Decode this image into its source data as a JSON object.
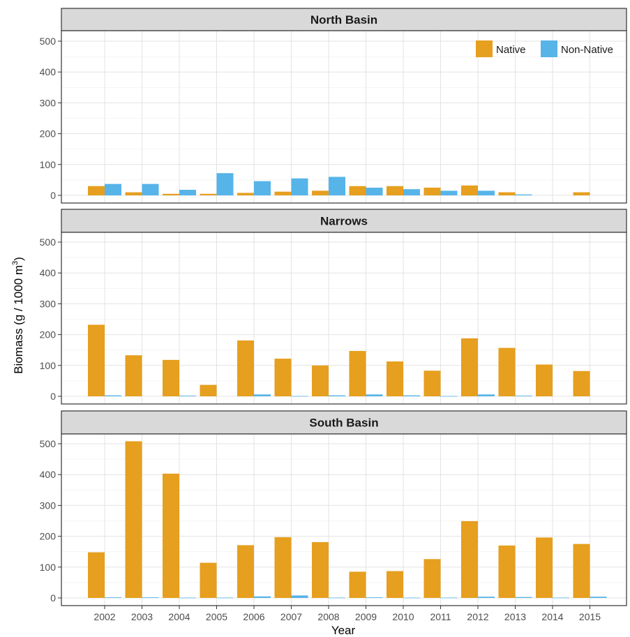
{
  "chart_data": {
    "type": "bar",
    "xlabel": "Year",
    "ylabel": "Biomass (g / 1000 m",
    "ylabel_superscript": "3",
    "ylabel_suffix": ")",
    "ylim": [
      0,
      520
    ],
    "yticks": [
      0,
      100,
      200,
      300,
      400,
      500
    ],
    "grid": true,
    "legend_position": "top-right",
    "categories": [
      "2002",
      "2003",
      "2004",
      "2005",
      "2006",
      "2007",
      "2008",
      "2009",
      "2010",
      "2011",
      "2012",
      "2013",
      "2014",
      "2015"
    ],
    "series_styles": [
      {
        "name": "Native",
        "color": "#E69F1E"
      },
      {
        "name": "Non-Native",
        "color": "#56B4E9"
      }
    ],
    "panels": [
      {
        "title": "North Basin",
        "series": [
          {
            "name": "Native",
            "values": [
              30,
              10,
              5,
              5,
              8,
              12,
              15,
              30,
              30,
              25,
              32,
              10,
              0,
              10
            ]
          },
          {
            "name": "Non-Native",
            "values": [
              37,
              37,
              18,
              72,
              46,
              55,
              60,
              25,
              20,
              15,
              15,
              3,
              0,
              0
            ]
          }
        ]
      },
      {
        "title": "Narrows",
        "series": [
          {
            "name": "Native",
            "values": [
              232,
              133,
              118,
              37,
              181,
              122,
              100,
              147,
              113,
              83,
              188,
              157,
              103,
              82
            ]
          },
          {
            "name": "Non-Native",
            "values": [
              3,
              0,
              2,
              0,
              6,
              1,
              3,
              6,
              3,
              1,
              6,
              2,
              0,
              0
            ]
          }
        ]
      },
      {
        "title": "South Basin",
        "series": [
          {
            "name": "Native",
            "values": [
              148,
              508,
              403,
              114,
              171,
              197,
              181,
              85,
              87,
              126,
              249,
              170,
              196,
              175
            ]
          },
          {
            "name": "Non-Native",
            "values": [
              2,
              2,
              1,
              1,
              5,
              8,
              1,
              2,
              1,
              1,
              4,
              3,
              1,
              4
            ]
          }
        ]
      }
    ]
  }
}
